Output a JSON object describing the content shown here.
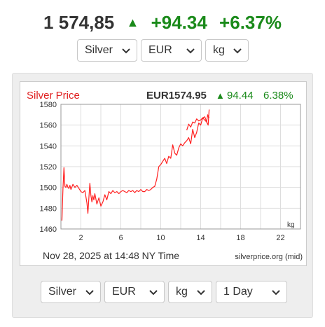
{
  "header": {
    "price": "1 574,85",
    "change": "+94.34",
    "change_pct": "+6.37%",
    "up_icon": "triangle-up-icon",
    "up_color": "#1a8a1a"
  },
  "top_selectors": {
    "metal": "Silver",
    "currency": "EUR",
    "unit": "kg"
  },
  "chart": {
    "title": "Silver Price",
    "quote_price": "EUR1574.95",
    "quote_change": "94.44",
    "quote_pct": "6.38%",
    "unit_label": "kg",
    "timestamp": "Nov 28, 2025 at 14:48 NY Time",
    "source": "silverprice.org (mid)",
    "title_color": "#e02020",
    "line_color": "#ff2020",
    "change_color": "#1a8a1a"
  },
  "chart_data": {
    "type": "line",
    "title": "Silver Price",
    "xlabel": "",
    "ylabel": "",
    "xlim": [
      0,
      24
    ],
    "ylim": [
      1460,
      1580
    ],
    "grid": true,
    "x_ticks": [
      2,
      6,
      10,
      14,
      18,
      22
    ],
    "y_ticks": [
      1460,
      1480,
      1500,
      1520,
      1540,
      1560,
      1580
    ],
    "series": [
      {
        "color": "#ff2020",
        "x": [
          0.1,
          0.2,
          0.3,
          0.4,
          0.5,
          0.6,
          0.7,
          0.8,
          0.9,
          1.0,
          1.2,
          1.4,
          1.6,
          1.8,
          2.0,
          2.2,
          2.4,
          2.6,
          2.7,
          2.8,
          2.9,
          3.0,
          3.1,
          3.2,
          3.3,
          3.4,
          3.6,
          3.8,
          4.0,
          4.2,
          4.4,
          4.6,
          4.8,
          5.0,
          5.2,
          5.4,
          5.6,
          5.8,
          6.0,
          6.2,
          6.4,
          6.6,
          6.8,
          7.0,
          7.2,
          7.4,
          7.6,
          7.8,
          8.0,
          8.2,
          8.4,
          8.6,
          8.8,
          9.0,
          9.2,
          9.4,
          9.6,
          9.8,
          10.0,
          10.2,
          10.4,
          10.6,
          10.8,
          11.0,
          11.2,
          11.4,
          11.6,
          11.8,
          12.0,
          12.2,
          12.4,
          12.6,
          12.8,
          13.0,
          13.2,
          13.4,
          13.6,
          13.8,
          14.0,
          14.2,
          14.4,
          14.6,
          14.7,
          14.8,
          14.85
        ],
        "y": [
          1468,
          1499,
          1519,
          1501,
          1500,
          1503,
          1500,
          1499,
          1502,
          1498,
          1503,
          1500,
          1502,
          1499,
          1496,
          1495,
          1497,
          1485,
          1475,
          1490,
          1504,
          1492,
          1486,
          1492,
          1488,
          1494,
          1484,
          1490,
          1482,
          1486,
          1493,
          1488,
          1496,
          1494,
          1497,
          1495,
          1496,
          1494,
          1496,
          1497,
          1496,
          1495,
          1497,
          1496,
          1497,
          1495,
          1497,
          1496,
          1498,
          1496,
          1496,
          1498,
          1497,
          1498,
          1500,
          1501,
          1508,
          1520,
          1522,
          1525,
          1528,
          1523,
          1530,
          1528,
          1541,
          1533,
          1531,
          1538,
          1542,
          1540,
          1543,
          1545,
          1548,
          1542,
          1556,
          1548,
          1553,
          1562,
          1560,
          1567,
          1565,
          1563,
          1570,
          1567,
          1568
        ]
      },
      {
        "color": "#ff2020",
        "x": [
          12.6,
          12.8,
          13.0,
          13.2,
          13.4,
          13.6,
          13.8,
          14.0,
          14.2,
          14.4,
          14.5,
          14.6,
          14.7,
          14.75,
          14.8,
          14.85
        ],
        "y": [
          1555,
          1561,
          1558,
          1563,
          1562,
          1566,
          1564,
          1565,
          1567,
          1568,
          1566,
          1563,
          1561,
          1560,
          1568,
          1575
        ]
      }
    ]
  },
  "bottom_selectors": {
    "metal": "Silver",
    "currency": "EUR",
    "unit": "kg",
    "period": "1 Day"
  }
}
